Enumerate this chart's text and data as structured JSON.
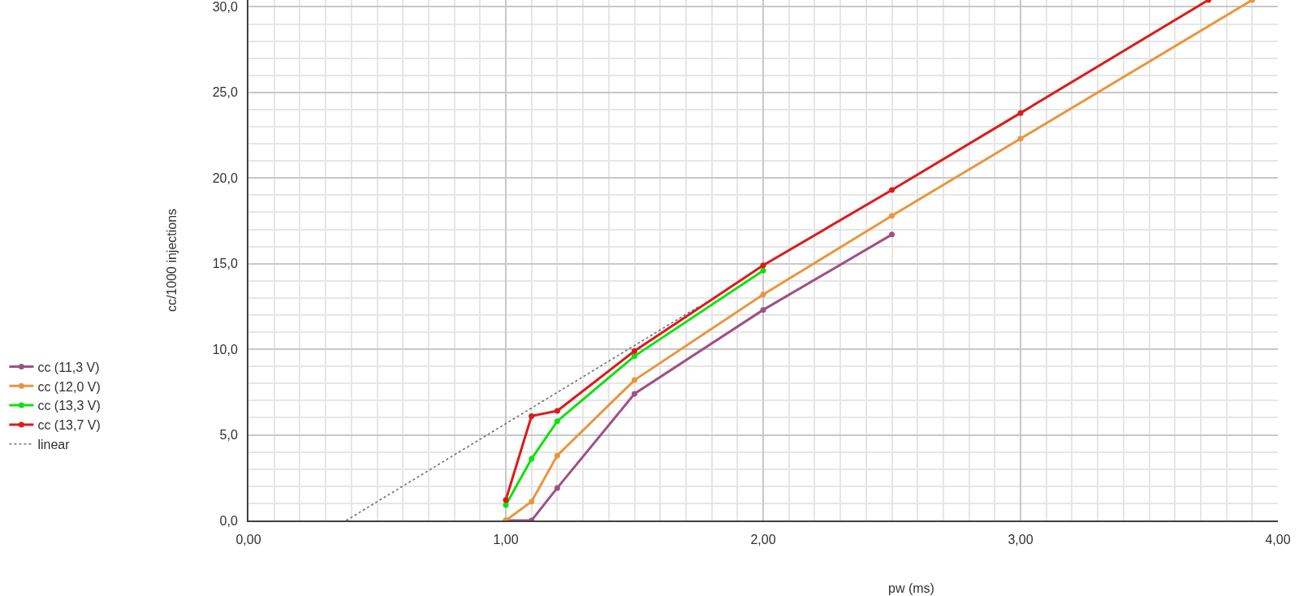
{
  "chart_data": {
    "type": "line",
    "xlabel": "pw (ms)",
    "ylabel": "cc/1000 injections",
    "xlim": [
      0,
      4
    ],
    "ylim": [
      0,
      30.4
    ],
    "xticks": [
      {
        "value": 0,
        "label": "0,00"
      },
      {
        "value": 1,
        "label": "1,00"
      },
      {
        "value": 2,
        "label": "2,00"
      },
      {
        "value": 3,
        "label": "3,00"
      },
      {
        "value": 4,
        "label": "4,00"
      },
      {
        "value": 0.1,
        "label": null
      },
      {
        "value": 0.2,
        "label": null
      },
      {
        "value": 0.3,
        "label": null
      },
      {
        "value": 0.4,
        "label": null
      },
      {
        "value": 0.5,
        "label": null
      },
      {
        "value": 0.6,
        "label": null
      },
      {
        "value": 0.7,
        "label": null
      },
      {
        "value": 0.8,
        "label": null
      },
      {
        "value": 0.9,
        "label": null
      },
      {
        "value": 1.1,
        "label": null
      },
      {
        "value": 1.2,
        "label": null
      },
      {
        "value": 1.3,
        "label": null
      },
      {
        "value": 1.4,
        "label": null
      },
      {
        "value": 1.5,
        "label": null
      },
      {
        "value": 1.6,
        "label": null
      },
      {
        "value": 1.7,
        "label": null
      },
      {
        "value": 1.8,
        "label": null
      },
      {
        "value": 1.9,
        "label": null
      },
      {
        "value": 2.1,
        "label": null
      },
      {
        "value": 2.2,
        "label": null
      },
      {
        "value": 2.3,
        "label": null
      },
      {
        "value": 2.4,
        "label": null
      },
      {
        "value": 2.5,
        "label": null
      },
      {
        "value": 2.6,
        "label": null
      },
      {
        "value": 2.7,
        "label": null
      },
      {
        "value": 2.8,
        "label": null
      },
      {
        "value": 2.9,
        "label": null
      },
      {
        "value": 3.1,
        "label": null
      },
      {
        "value": 3.2,
        "label": null
      },
      {
        "value": 3.3,
        "label": null
      },
      {
        "value": 3.4,
        "label": null
      },
      {
        "value": 3.5,
        "label": null
      },
      {
        "value": 3.6,
        "label": null
      },
      {
        "value": 3.7,
        "label": null
      },
      {
        "value": 3.8,
        "label": null
      },
      {
        "value": 3.9,
        "label": null
      }
    ],
    "yticks": [
      {
        "value": 0,
        "label": "0,0"
      },
      {
        "value": 5,
        "label": "5,0"
      },
      {
        "value": 10,
        "label": "10,0"
      },
      {
        "value": 15,
        "label": "15,0"
      },
      {
        "value": 20,
        "label": "20,0"
      },
      {
        "value": 25,
        "label": "25,0"
      },
      {
        "value": 30,
        "label": "30,0"
      },
      {
        "value": 1,
        "label": null
      },
      {
        "value": 2,
        "label": null
      },
      {
        "value": 3,
        "label": null
      },
      {
        "value": 4,
        "label": null
      },
      {
        "value": 6,
        "label": null
      },
      {
        "value": 7,
        "label": null
      },
      {
        "value": 8,
        "label": null
      },
      {
        "value": 9,
        "label": null
      },
      {
        "value": 11,
        "label": null
      },
      {
        "value": 12,
        "label": null
      },
      {
        "value": 13,
        "label": null
      },
      {
        "value": 14,
        "label": null
      },
      {
        "value": 16,
        "label": null
      },
      {
        "value": 17,
        "label": null
      },
      {
        "value": 18,
        "label": null
      },
      {
        "value": 19,
        "label": null
      },
      {
        "value": 21,
        "label": null
      },
      {
        "value": 22,
        "label": null
      },
      {
        "value": 23,
        "label": null
      },
      {
        "value": 24,
        "label": null
      },
      {
        "value": 26,
        "label": null
      },
      {
        "value": 27,
        "label": null
      },
      {
        "value": 28,
        "label": null
      },
      {
        "value": 29,
        "label": null
      }
    ],
    "grid": true,
    "legend": "left",
    "marker": "circle",
    "line_style": "solid",
    "series": [
      {
        "name": "cc (11,3 V)",
        "color": "#9e5286",
        "x": [
          1.0,
          1.1,
          1.2,
          1.5,
          2.0,
          2.5
        ],
        "values": [
          0,
          0,
          1.9,
          7.4,
          12.3,
          16.7
        ]
      },
      {
        "name": "cc (12,0 V)",
        "color": "#e8963e",
        "x": [
          1.0,
          1.1,
          1.2,
          1.5,
          2.0,
          2.5,
          3.0,
          3.9
        ],
        "values": [
          0,
          1.1,
          3.8,
          8.2,
          13.2,
          17.8,
          22.3,
          30.4
        ]
      },
      {
        "name": "cc (13,3 V)",
        "color": "#11e011",
        "x": [
          1.0,
          1.1,
          1.2,
          1.5,
          2.0
        ],
        "values": [
          0.9,
          3.6,
          5.8,
          9.6,
          14.6
        ]
      },
      {
        "name": "cc (13,7 V)",
        "color": "#dd1a1a",
        "x": [
          1.0,
          1.1,
          1.2,
          1.5,
          2.0,
          2.5,
          3.0,
          3.73
        ],
        "values": [
          1.2,
          6.1,
          6.4,
          9.9,
          14.9,
          19.3,
          23.8,
          30.4
        ]
      },
      {
        "name": "linear",
        "type": "line",
        "color": "#707070",
        "line_style": "dotted",
        "marker": "none",
        "x": [
          0.38,
          1.75
        ],
        "values": [
          0,
          12.5
        ]
      }
    ]
  }
}
